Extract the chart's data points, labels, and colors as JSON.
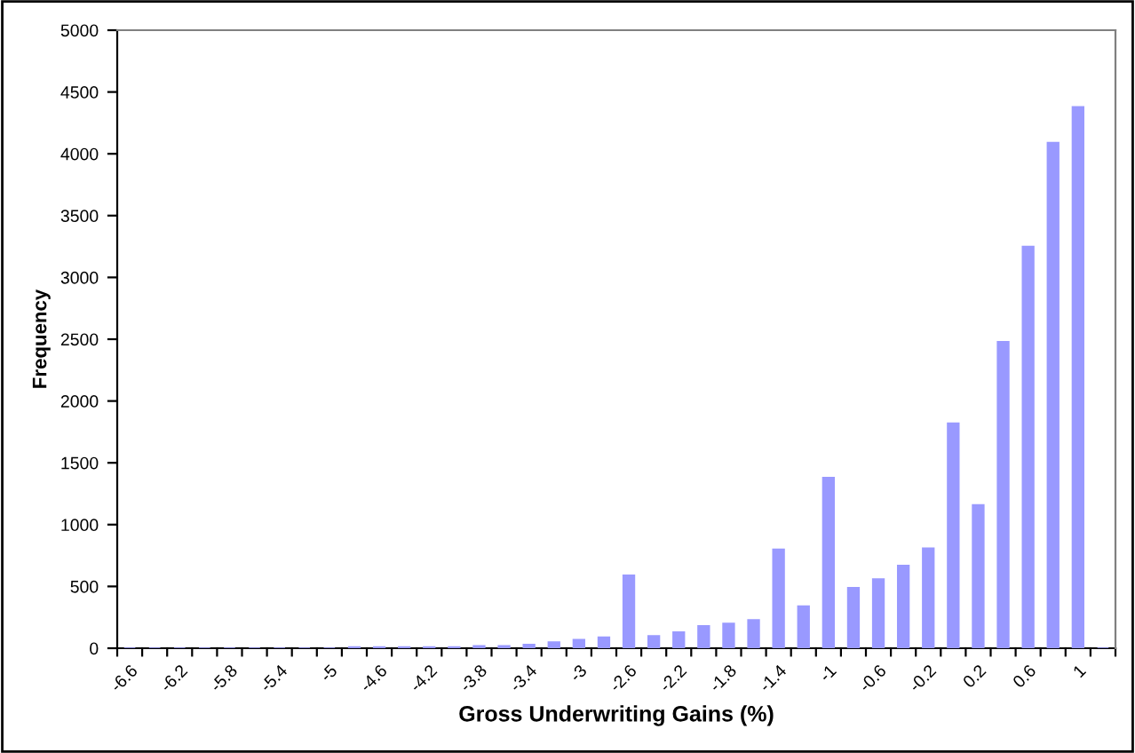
{
  "chart_data": {
    "type": "histogram",
    "xlabel": "Gross Underwriting Gains (%)",
    "ylabel": "Frequency",
    "categories": [
      "-6.6",
      null,
      "-6.2",
      null,
      "-5.8",
      null,
      "-5.4",
      null,
      "-5",
      null,
      "-4.6",
      null,
      "-4.2",
      null,
      "-3.8",
      null,
      "-3.4",
      null,
      "-3",
      null,
      "-2.6",
      null,
      "-2.2",
      null,
      "-1.8",
      null,
      "-1.4",
      null,
      "-1",
      null,
      "-0.6",
      null,
      "-0.2",
      null,
      "0.2",
      null,
      "0.6",
      null,
      "1",
      null
    ],
    "values": [
      0,
      0,
      0,
      0,
      0,
      0,
      0,
      0,
      0,
      10,
      10,
      10,
      10,
      10,
      20,
      20,
      30,
      50,
      70,
      90,
      590,
      100,
      130,
      180,
      200,
      230,
      800,
      340,
      1380,
      490,
      560,
      670,
      810,
      1820,
      1160,
      2480,
      3250,
      4090,
      4380,
      0
    ],
    "color": "#9999ff",
    "ylim": [
      0,
      5000
    ],
    "yticks": [
      0,
      500,
      1000,
      1500,
      2000,
      2500,
      3000,
      3500,
      4000,
      4500,
      5000
    ],
    "grid": false,
    "legend": false
  }
}
